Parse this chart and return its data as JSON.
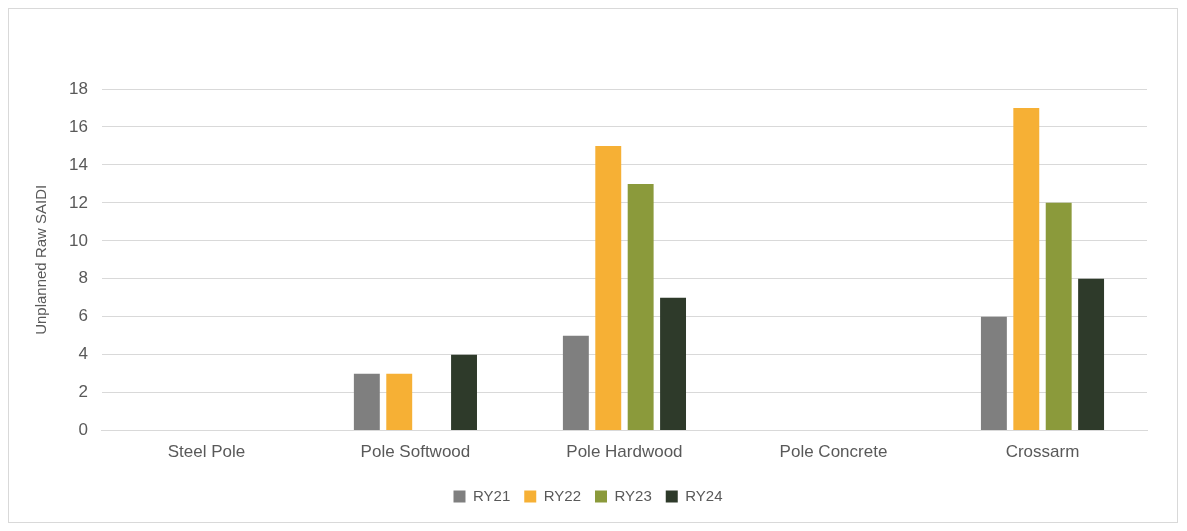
{
  "chart_data": {
    "type": "bar",
    "ylabel": "Unplanned Raw SAIDI",
    "categories": [
      "Steel Pole",
      "Pole Softwood",
      "Pole Hardwood",
      "Pole Concrete",
      "Crossarm"
    ],
    "series": [
      {
        "name": "RY21",
        "color": "#7f7f7f",
        "values": [
          0,
          3,
          5,
          0,
          6
        ]
      },
      {
        "name": "RY22",
        "color": "#f6b035",
        "values": [
          0,
          3,
          15,
          0,
          17
        ]
      },
      {
        "name": "RY23",
        "color": "#8b9a3b",
        "values": [
          0,
          0,
          13,
          0,
          12
        ]
      },
      {
        "name": "RY24",
        "color": "#2e3a2a",
        "values": [
          0,
          4,
          7,
          0,
          8
        ]
      }
    ],
    "ylim": [
      0,
      18
    ],
    "yticks": [
      0,
      2,
      4,
      6,
      8,
      10,
      12,
      14,
      16,
      18
    ],
    "grid": "y",
    "legend": "bottom"
  }
}
